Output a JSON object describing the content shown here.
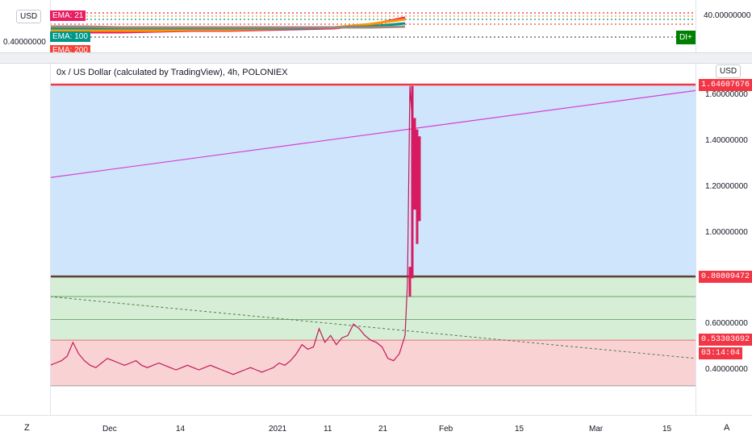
{
  "chart_data": {
    "type": "line",
    "title": "0x / US Dollar (calculated by TradingView), 4h, POLONIEX",
    "currency": "USD",
    "x_tick_labels": [
      "Dec",
      "14",
      "2021",
      "11",
      "21",
      "Feb",
      "15",
      "Mar",
      "15"
    ],
    "y_tick_labels": [
      "1.60000000",
      "1.40000000",
      "1.20000000",
      "1.00000000",
      "0.60000000",
      "0.40000000"
    ],
    "ylim": [
      0.27,
      1.67
    ],
    "price_tags": [
      {
        "label": "1.64607676",
        "value": 1.646,
        "color": "#f23645"
      },
      {
        "label": "0.80809472",
        "value": 0.808,
        "color": "#f23645"
      },
      {
        "label": "0.53303692",
        "value": 0.533,
        "color": "#f23645"
      },
      {
        "label": "03:14:04",
        "value": 0.475,
        "color": "#f23645"
      }
    ],
    "zones": [
      {
        "from": 0.808,
        "to": 1.646,
        "color": "#cfe5fb"
      },
      {
        "from": 0.53,
        "to": 0.808,
        "color": "#d6eed6"
      },
      {
        "from": 0.33,
        "to": 0.53,
        "color": "#f9d3d3"
      }
    ],
    "horizontal_levels": [
      1.646,
      0.808,
      0.72,
      0.62,
      0.53,
      0.33
    ],
    "trend_line": {
      "from": [
        0,
        1.24
      ],
      "to": [
        1,
        1.62
      ],
      "color": "#d63fd6"
    },
    "dotted_line": {
      "from": [
        0,
        0.72
      ],
      "to": [
        1,
        0.45
      ],
      "color": "#4a7a4a"
    },
    "price_series": [
      0.42,
      0.43,
      0.44,
      0.46,
      0.52,
      0.47,
      0.44,
      0.42,
      0.41,
      0.43,
      0.45,
      0.44,
      0.43,
      0.42,
      0.43,
      0.44,
      0.42,
      0.41,
      0.42,
      0.43,
      0.42,
      0.41,
      0.4,
      0.41,
      0.42,
      0.41,
      0.4,
      0.41,
      0.42,
      0.41,
      0.4,
      0.39,
      0.38,
      0.39,
      0.4,
      0.41,
      0.4,
      0.39,
      0.4,
      0.41,
      0.43,
      0.42,
      0.44,
      0.47,
      0.51,
      0.49,
      0.5,
      0.58,
      0.52,
      0.55,
      0.51,
      0.54,
      0.55,
      0.6,
      0.58,
      0.55,
      0.53,
      0.52,
      0.5,
      0.45,
      0.44,
      0.47,
      0.55,
      0.78,
      1.64,
      1.48,
      1.3,
      1.05,
      1.42
    ],
    "indicator": {
      "axis_label": "40.00000000",
      "left_label": "0.40000000",
      "ema_tags": [
        {
          "label": "EMA: 21",
          "color": "#e91e63"
        },
        {
          "label": "EMA: 100",
          "color": "#009688"
        },
        {
          "label": "EMA: 200",
          "color": "#f44336"
        }
      ],
      "di_tag": "DI+",
      "lines": [
        {
          "color": "#e91e63",
          "values": [
            22,
            22,
            22,
            23,
            24,
            24,
            25,
            26,
            27,
            31,
            40
          ]
        },
        {
          "color": "#ff9800",
          "values": [
            24,
            24,
            24,
            24,
            25,
            25,
            26,
            27,
            28,
            32,
            38
          ]
        },
        {
          "color": "#009688",
          "values": [
            27,
            27,
            27,
            27,
            27,
            27,
            27,
            27,
            28,
            29,
            33
          ]
        },
        {
          "color": "#a1887f",
          "values": [
            29,
            29,
            28,
            28,
            28,
            28,
            28,
            28,
            28,
            28,
            29
          ]
        }
      ]
    }
  },
  "toolbar": {
    "usd_button": "USD",
    "z_button": "Z",
    "a_button": "A"
  }
}
